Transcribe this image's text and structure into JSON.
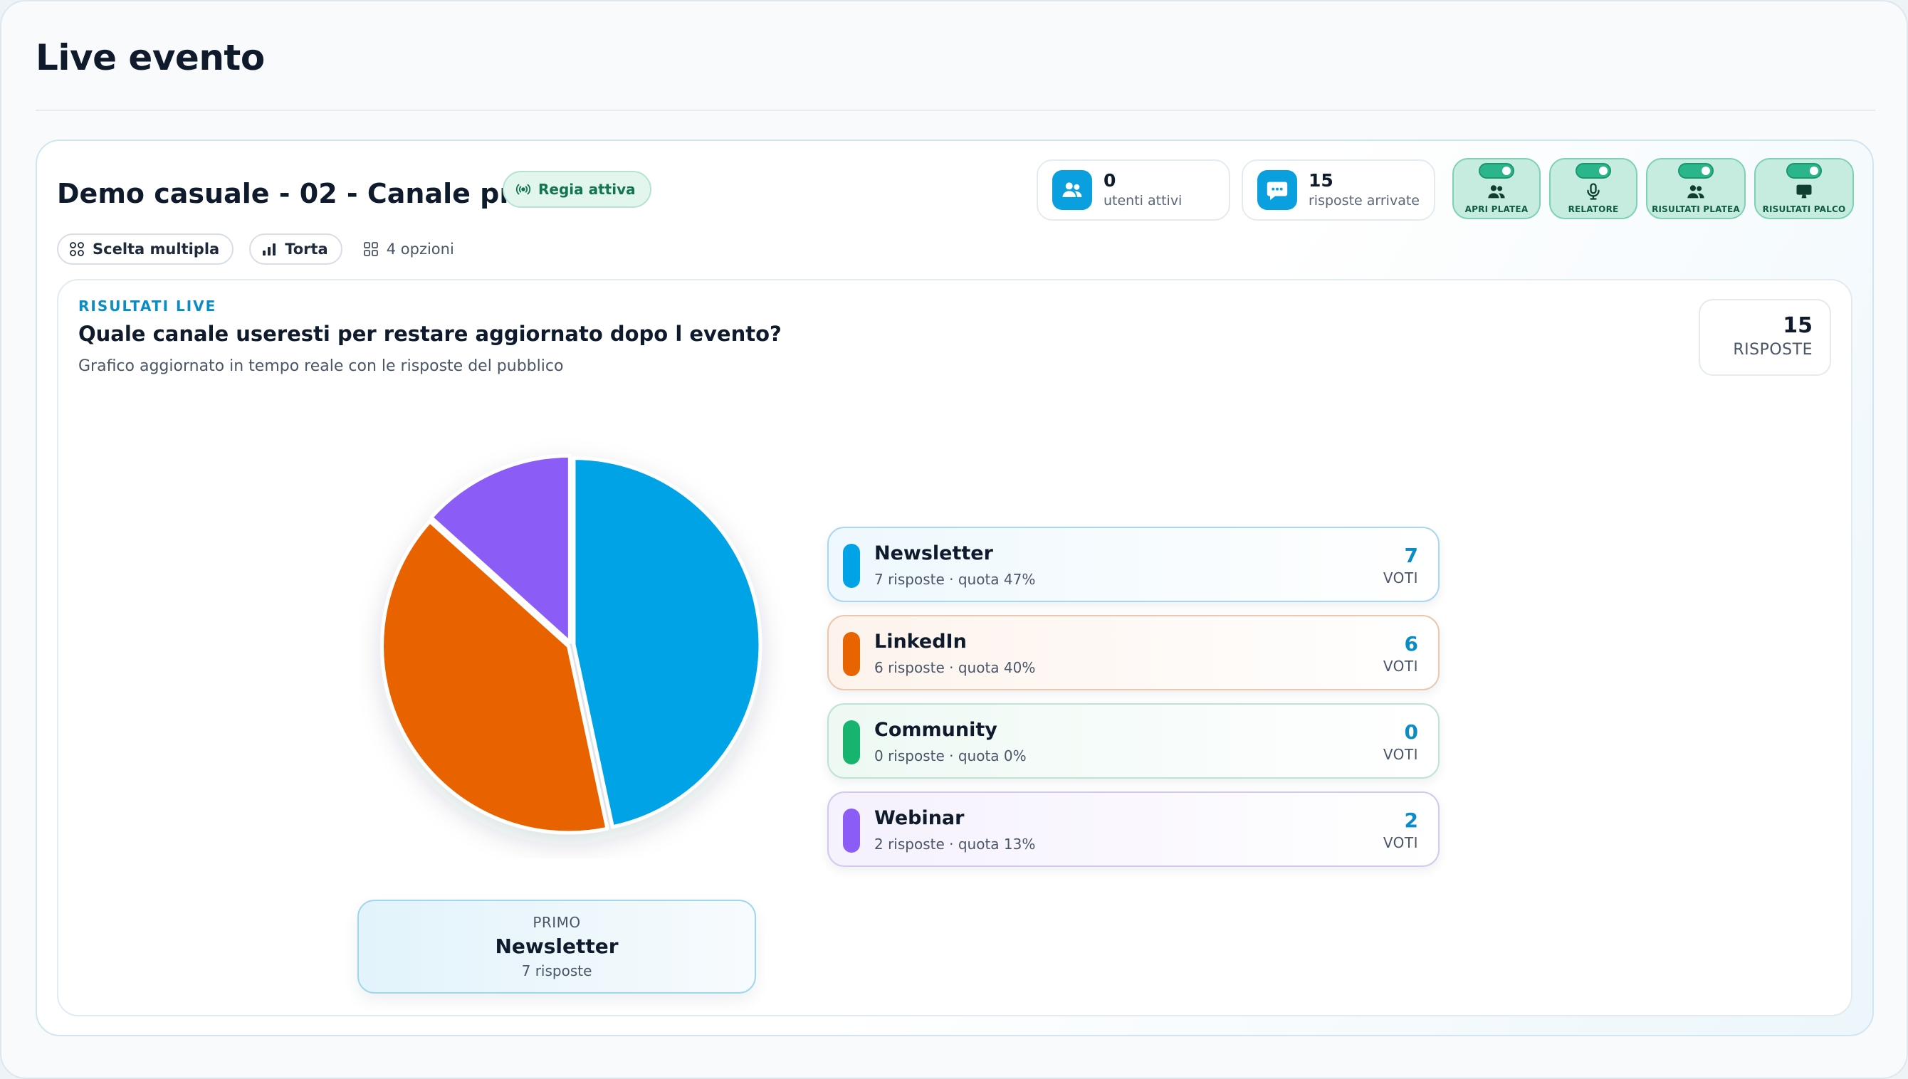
{
  "page": {
    "title": "Live evento"
  },
  "event": {
    "title": "Demo casuale - 02 - Canale preferito",
    "status_pill": "Regia attiva",
    "tags": {
      "type": "Scelta multipla",
      "chart": "Torta",
      "options": "4 opzioni"
    },
    "stats": [
      {
        "value": "0",
        "label": "utenti attivi",
        "icon": "users-icon"
      },
      {
        "value": "15",
        "label": "risposte arrivate",
        "icon": "chat-icon"
      }
    ],
    "toggles": [
      {
        "label": "APRI PLATEA",
        "icon": "users-icon",
        "on": true
      },
      {
        "label": "RELATORE",
        "icon": "microphone-icon",
        "on": true
      },
      {
        "label": "RISULTATI PLATEA",
        "icon": "users-icon",
        "on": true
      },
      {
        "label": "RISULTATI PALCO",
        "icon": "monitor-icon",
        "on": true
      }
    ]
  },
  "results": {
    "kicker": "RISULTATI LIVE",
    "question": "Quale canale useresti per restare aggiornato dopo l evento?",
    "subtitle": "Grafico aggiornato in tempo reale con le risposte del pubblico",
    "total": {
      "value": "15",
      "label": "RISPOSTE"
    },
    "options": [
      {
        "name": "Newsletter",
        "meta": "7 risposte · quota 47%",
        "votes": "7",
        "votes_label": "VOTI",
        "color": "#00a3e6",
        "bg": "#eef8fd",
        "border": "#a9d8ee"
      },
      {
        "name": "LinkedIn",
        "meta": "6 risposte · quota 40%",
        "votes": "6",
        "votes_label": "VOTI",
        "color": "#e86400",
        "bg": "#fdf3ec",
        "border": "#ecc7ad"
      },
      {
        "name": "Community",
        "meta": "0 risposte · quota 0%",
        "votes": "0",
        "votes_label": "VOTI",
        "color": "#17b46f",
        "bg": "#eef9f4",
        "border": "#bfe3d2"
      },
      {
        "name": "Webinar",
        "meta": "2 risposte · quota 13%",
        "votes": "2",
        "votes_label": "VOTI",
        "color": "#8b5cf6",
        "bg": "#f5f1fd",
        "border": "#d4c8ef"
      }
    ],
    "first": {
      "label": "PRIMO",
      "name": "Newsletter",
      "sub": "7 risposte"
    }
  },
  "chart_data": {
    "type": "pie",
    "categories": [
      "Newsletter",
      "LinkedIn",
      "Community",
      "Webinar"
    ],
    "values": [
      7,
      6,
      0,
      2
    ],
    "colors": [
      "#00a3e6",
      "#e86400",
      "#17b46f",
      "#8b5cf6"
    ]
  }
}
